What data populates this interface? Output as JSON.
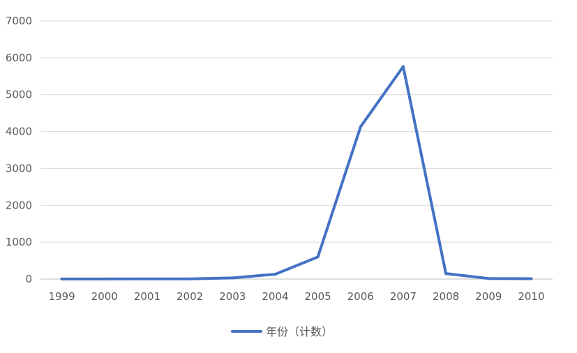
{
  "chart_data": {
    "type": "line",
    "x": [
      1999,
      2000,
      2001,
      2002,
      2003,
      2004,
      2005,
      2006,
      2007,
      2008,
      2009,
      2010
    ],
    "categories": [
      "1999",
      "2000",
      "2001",
      "2002",
      "2003",
      "2004",
      "2005",
      "2006",
      "2007",
      "2008",
      "2009",
      "2010"
    ],
    "series": [
      {
        "name": "年份（计数）",
        "color": "#4472C4",
        "values": [
          2,
          2,
          3,
          5,
          30,
          130,
          600,
          4130,
          5760,
          150,
          15,
          10
        ]
      }
    ],
    "ylim": [
      0,
      7000
    ],
    "yticks": [
      0,
      1000,
      2000,
      3000,
      4000,
      5000,
      6000,
      7000
    ],
    "grid": true,
    "legend_position": "bottom",
    "title": "",
    "xlabel": "",
    "ylabel": ""
  }
}
